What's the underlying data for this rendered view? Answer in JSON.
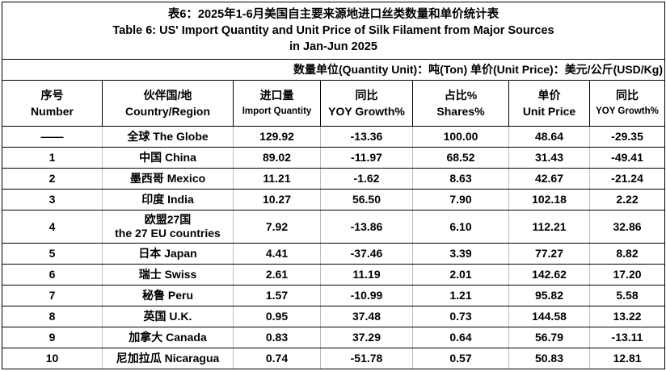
{
  "title": {
    "zh": "表6：2025年1-6月美国自主要来源地进口丝类数量和单价统计表",
    "en_line1": "Table 6: US' Import Quantity and Unit Price of Silk Filament from Major Sources",
    "en_line2": "in Jan-Jun 2025"
  },
  "unit_note": "数量单位(Quantity Unit)：吨(Ton)  单价(Unit Price)：美元/公斤(USD/Kg)",
  "headers": [
    {
      "zh": "序号",
      "en": "Number"
    },
    {
      "zh": "伙伴国/地",
      "en": "Country/Region"
    },
    {
      "zh": "进口量",
      "en": "Import Quantity"
    },
    {
      "zh": "同比",
      "en": "YOY Growth%"
    },
    {
      "zh": "占比%",
      "en": "Shares%"
    },
    {
      "zh": "单价",
      "en": "Unit Price"
    },
    {
      "zh": "同比",
      "en": "YOY Growth%"
    }
  ],
  "rows": [
    [
      "——",
      "全球 The Globe",
      "129.92",
      "-13.36",
      "100.00",
      "48.64",
      "-29.35"
    ],
    [
      "1",
      "中国 China",
      "89.02",
      "-11.97",
      "68.52",
      "31.43",
      "-49.41"
    ],
    [
      "2",
      "墨西哥 Mexico",
      "11.21",
      "-1.62",
      "8.63",
      "42.67",
      "-21.24"
    ],
    [
      "3",
      "印度 India",
      "10.27",
      "56.50",
      "7.90",
      "102.18",
      "2.22"
    ],
    [
      "4",
      "欧盟27国",
      "7.92",
      "-13.86",
      "6.10",
      "112.21",
      "32.86",
      "the 27 EU countries"
    ],
    [
      "5",
      "日本 Japan",
      "4.41",
      "-37.46",
      "3.39",
      "77.27",
      "8.82"
    ],
    [
      "6",
      "瑞士 Swiss",
      "2.61",
      "11.19",
      "2.01",
      "142.62",
      "17.20"
    ],
    [
      "7",
      "秘鲁 Peru",
      "1.57",
      "-10.99",
      "1.21",
      "95.82",
      "5.58"
    ],
    [
      "8",
      "英国 U.K.",
      "0.95",
      "37.48",
      "0.73",
      "144.58",
      "13.22"
    ],
    [
      "9",
      "加拿大 Canada",
      "0.83",
      "37.29",
      "0.64",
      "56.79",
      "-13.11"
    ],
    [
      "10",
      "尼加拉瓜 Nicaragua",
      "0.74",
      "-51.78",
      "0.57",
      "50.83",
      "12.81"
    ]
  ]
}
